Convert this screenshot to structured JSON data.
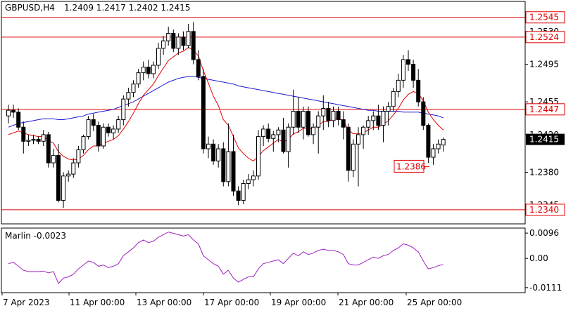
{
  "header": {
    "symbol_label": "GBPUSD,H4",
    "ohlc": "1.2409 1.2417 1.2402 1.2415"
  },
  "indicator": {
    "label": "Marlin -0.0023",
    "ticks": [
      {
        "v": 0.0096,
        "label": "0.0096"
      },
      {
        "v": 0.0,
        "label": "0.00"
      },
      {
        "v": -0.0111,
        "label": "-0.0111"
      }
    ]
  },
  "price_axis": {
    "ticks": [
      {
        "v": 1.253,
        "label": "1.2530"
      },
      {
        "v": 1.2495,
        "label": "1.2495"
      },
      {
        "v": 1.2455,
        "label": "1.2455"
      },
      {
        "v": 1.242,
        "label": "1.2420"
      },
      {
        "v": 1.238,
        "label": "1.2380"
      },
      {
        "v": 1.2345,
        "label": "1.2345"
      }
    ],
    "current_price": {
      "v": 1.2415,
      "label": "1.2415"
    }
  },
  "levels": [
    {
      "v": 1.2545,
      "label": "1.2545",
      "color": "#e00000"
    },
    {
      "v": 1.2524,
      "label": "1.2524",
      "color": "#e00000"
    },
    {
      "v": 1.2447,
      "label": "1.2447",
      "color": "#e00000"
    },
    {
      "v": 1.234,
      "label": "1.2340",
      "color": "#e00000"
    }
  ],
  "annotation": {
    "v": 1.2386,
    "label": "1.2386",
    "color": "#e00000"
  },
  "time_axis": [
    "7 Apr 2023",
    "11 Apr 00:00",
    "13 Apr 00:00",
    "17 Apr 00:00",
    "19 Apr 00:00",
    "21 Apr 00:00",
    "25 Apr 00:00"
  ],
  "colors": {
    "bull": "#ffffff",
    "bear": "#000000",
    "ma_fast": "#e00000",
    "ma_slow": "#1a1ad0",
    "oscillator": "#a020c0",
    "level": "#e00000"
  },
  "chart_data": {
    "type": "candlestick",
    "series": [
      {
        "name": "GBPUSD,H4",
        "ohlc": [
          [
            1.244,
            1.2452,
            1.2432,
            1.2446
          ],
          [
            1.2446,
            1.2452,
            1.2438,
            1.2444
          ],
          [
            1.2444,
            1.2448,
            1.2425,
            1.2428
          ],
          [
            1.2428,
            1.2434,
            1.24,
            1.2413
          ],
          [
            1.2413,
            1.242,
            1.2408,
            1.2414
          ],
          [
            1.2414,
            1.242,
            1.241,
            1.2415
          ],
          [
            1.2415,
            1.2418,
            1.241,
            1.2413
          ],
          [
            1.2413,
            1.2425,
            1.2408,
            1.242
          ],
          [
            1.242,
            1.2423,
            1.2385,
            1.239
          ],
          [
            1.239,
            1.2405,
            1.2385,
            1.2398
          ],
          [
            1.2398,
            1.241,
            1.2348,
            1.235
          ],
          [
            1.235,
            1.238,
            1.2342,
            1.2376
          ],
          [
            1.2376,
            1.2382,
            1.237,
            1.2378
          ],
          [
            1.2378,
            1.2395,
            1.2374,
            1.239
          ],
          [
            1.239,
            1.2408,
            1.2385,
            1.2404
          ],
          [
            1.2404,
            1.242,
            1.24,
            1.2418
          ],
          [
            1.2418,
            1.244,
            1.2415,
            1.2436
          ],
          [
            1.2436,
            1.2442,
            1.2424,
            1.243
          ],
          [
            1.243,
            1.2434,
            1.2402,
            1.2408
          ],
          [
            1.2408,
            1.2432,
            1.2405,
            1.2428
          ],
          [
            1.2428,
            1.2432,
            1.2418,
            1.2422
          ],
          [
            1.2422,
            1.243,
            1.2415,
            1.2426
          ],
          [
            1.2426,
            1.244,
            1.2422,
            1.2436
          ],
          [
            1.2436,
            1.2462,
            1.243,
            1.2458
          ],
          [
            1.2458,
            1.247,
            1.245,
            1.2465
          ],
          [
            1.2465,
            1.2478,
            1.246,
            1.2474
          ],
          [
            1.2474,
            1.249,
            1.247,
            1.2486
          ],
          [
            1.2486,
            1.2498,
            1.2478,
            1.2492
          ],
          [
            1.2492,
            1.25,
            1.248,
            1.2485
          ],
          [
            1.2485,
            1.2498,
            1.248,
            1.2494
          ],
          [
            1.2494,
            1.2518,
            1.249,
            1.2512
          ],
          [
            1.2512,
            1.2525,
            1.2505,
            1.252
          ],
          [
            1.252,
            1.2535,
            1.2515,
            1.2528
          ],
          [
            1.2528,
            1.2532,
            1.2508,
            1.2512
          ],
          [
            1.2512,
            1.2528,
            1.2505,
            1.2524
          ],
          [
            1.2524,
            1.253,
            1.251,
            1.2515
          ],
          [
            1.2515,
            1.2538,
            1.2512,
            1.253
          ],
          [
            1.253,
            1.254,
            1.2495,
            1.25
          ],
          [
            1.25,
            1.251,
            1.2478,
            1.2482
          ],
          [
            1.2482,
            1.249,
            1.24,
            1.2405
          ],
          [
            1.2405,
            1.2418,
            1.2395,
            1.241
          ],
          [
            1.241,
            1.2415,
            1.2388,
            1.2392
          ],
          [
            1.2392,
            1.241,
            1.2385,
            1.2405
          ],
          [
            1.2405,
            1.2412,
            1.2365,
            1.237
          ],
          [
            1.237,
            1.2432,
            1.2365,
            1.2402
          ],
          [
            1.2402,
            1.242,
            1.2355,
            1.236
          ],
          [
            1.236,
            1.2365,
            1.2345,
            1.235
          ],
          [
            1.235,
            1.2372,
            1.2346,
            1.2368
          ],
          [
            1.2368,
            1.2378,
            1.2362,
            1.2372
          ],
          [
            1.2372,
            1.2382,
            1.2365,
            1.2376
          ],
          [
            1.2376,
            1.2425,
            1.2372,
            1.2418
          ],
          [
            1.2418,
            1.243,
            1.2408,
            1.2426
          ],
          [
            1.2426,
            1.2432,
            1.2412,
            1.2416
          ],
          [
            1.2416,
            1.2424,
            1.2402,
            1.242
          ],
          [
            1.242,
            1.2428,
            1.2412,
            1.2425
          ],
          [
            1.2425,
            1.2438,
            1.24,
            1.2402
          ],
          [
            1.2402,
            1.2432,
            1.2385,
            1.2428
          ],
          [
            1.2428,
            1.2468,
            1.242,
            1.2445
          ],
          [
            1.2445,
            1.246,
            1.2422,
            1.2428
          ],
          [
            1.2428,
            1.245,
            1.2415,
            1.2445
          ],
          [
            1.2445,
            1.245,
            1.2418,
            1.242
          ],
          [
            1.242,
            1.2432,
            1.241,
            1.2428
          ],
          [
            1.2428,
            1.2445,
            1.24,
            1.244
          ],
          [
            1.244,
            1.2462,
            1.2425,
            1.2448
          ],
          [
            1.2448,
            1.2455,
            1.2428,
            1.2435
          ],
          [
            1.2435,
            1.245,
            1.2428,
            1.2445
          ],
          [
            1.2445,
            1.245,
            1.243,
            1.2436
          ],
          [
            1.2436,
            1.2445,
            1.2415,
            1.2428
          ],
          [
            1.2428,
            1.2432,
            1.237,
            1.2382
          ],
          [
            1.2382,
            1.2415,
            1.2375,
            1.241
          ],
          [
            1.241,
            1.2428,
            1.2365,
            1.242
          ],
          [
            1.242,
            1.243,
            1.2405,
            1.2428
          ],
          [
            1.2428,
            1.244,
            1.242,
            1.2435
          ],
          [
            1.2435,
            1.2445,
            1.2425,
            1.244
          ],
          [
            1.244,
            1.2452,
            1.2425,
            1.243
          ],
          [
            1.243,
            1.245,
            1.2412,
            1.2445
          ],
          [
            1.2445,
            1.2455,
            1.243,
            1.245
          ],
          [
            1.245,
            1.247,
            1.2445,
            1.2466
          ],
          [
            1.2466,
            1.2485,
            1.246,
            1.2478
          ],
          [
            1.2478,
            1.2505,
            1.247,
            1.25
          ],
          [
            1.25,
            1.251,
            1.2488,
            1.2495
          ],
          [
            1.2495,
            1.25,
            1.247,
            1.2478
          ],
          [
            1.2478,
            1.249,
            1.245,
            1.2455
          ],
          [
            1.2455,
            1.246,
            1.2425,
            1.243
          ],
          [
            1.243,
            1.2432,
            1.239,
            1.2396
          ],
          [
            1.2396,
            1.241,
            1.2388,
            1.2405
          ],
          [
            1.2405,
            1.2415,
            1.24,
            1.241
          ],
          [
            1.2409,
            1.2417,
            1.2402,
            1.2415
          ]
        ]
      }
    ],
    "ma_fast": [
      1.242,
      1.2422,
      1.2424,
      1.2422,
      1.242,
      1.2419,
      1.2418,
      1.2418,
      1.2414,
      1.2411,
      1.2402,
      1.2397,
      1.2394,
      1.2393,
      1.2394,
      1.2398,
      1.2404,
      1.2408,
      1.2408,
      1.2411,
      1.2413,
      1.2415,
      1.2419,
      1.2426,
      1.2434,
      1.2443,
      1.2453,
      1.2462,
      1.2468,
      1.2474,
      1.2483,
      1.2491,
      1.2499,
      1.2503,
      1.2507,
      1.2509,
      1.2513,
      1.251,
      1.2504,
      1.2488,
      1.2475,
      1.2461,
      1.2451,
      1.2436,
      1.243,
      1.2418,
      1.2406,
      1.24,
      1.2395,
      1.2392,
      1.2397,
      1.2403,
      1.2407,
      1.2411,
      1.2415,
      1.2412,
      1.2415,
      1.2421,
      1.2423,
      1.2427,
      1.2426,
      1.2427,
      1.243,
      1.2434,
      1.2434,
      1.2437,
      1.2437,
      1.2435,
      1.2425,
      1.2421,
      1.2421,
      1.2422,
      1.2425,
      1.2428,
      1.2428,
      1.2431,
      1.2435,
      1.2441,
      1.2448,
      1.2457,
      1.2463,
      1.2466,
      1.2464,
      1.2456,
      1.2444,
      1.2436,
      1.243,
      1.2425
    ],
    "ma_slow": [
      1.2428,
      1.243,
      1.2432,
      1.2433,
      1.2434,
      1.2435,
      1.2436,
      1.2437,
      1.2437,
      1.2437,
      1.2436,
      1.2436,
      1.2437,
      1.2438,
      1.2439,
      1.244,
      1.2442,
      1.2443,
      1.2444,
      1.2445,
      1.2446,
      1.2447,
      1.2449,
      1.2451,
      1.2453,
      1.2455,
      1.2458,
      1.2461,
      1.2464,
      1.2467,
      1.247,
      1.2473,
      1.2476,
      1.2478,
      1.248,
      1.2481,
      1.2482,
      1.2482,
      1.2481,
      1.248,
      1.2479,
      1.2478,
      1.2477,
      1.2476,
      1.2475,
      1.2474,
      1.2472,
      1.2471,
      1.247,
      1.2469,
      1.2468,
      1.2467,
      1.2466,
      1.2465,
      1.2464,
      1.2463,
      1.2462,
      1.2461,
      1.246,
      1.2459,
      1.2458,
      1.2457,
      1.2456,
      1.2455,
      1.2454,
      1.2453,
      1.2452,
      1.2451,
      1.245,
      1.2449,
      1.2448,
      1.2447,
      1.2446,
      1.2446,
      1.2445,
      1.2445,
      1.2445,
      1.2445,
      1.2445,
      1.2444,
      1.2444,
      1.2444,
      1.2444,
      1.2443,
      1.2442,
      1.2441,
      1.244,
      1.2438
    ],
    "oscillator": [
      -0.002,
      -0.0015,
      -0.003,
      -0.0045,
      -0.005,
      -0.005,
      -0.005,
      -0.0048,
      -0.0055,
      -0.005,
      -0.0095,
      -0.0075,
      -0.007,
      -0.006,
      -0.004,
      -0.0025,
      -0.001,
      -0.0015,
      -0.003,
      -0.0025,
      -0.0035,
      -0.003,
      -0.002,
      0.001,
      0.0025,
      0.004,
      0.006,
      0.007,
      0.006,
      0.0065,
      0.008,
      0.009,
      0.01,
      0.0095,
      0.009,
      0.0085,
      0.009,
      0.007,
      0.0055,
      0.001,
      -0.0005,
      -0.002,
      -0.003,
      -0.006,
      -0.0045,
      -0.0075,
      -0.009,
      -0.008,
      -0.007,
      -0.007,
      -0.004,
      -0.002,
      -0.0015,
      -0.001,
      -0.0005,
      -0.002,
      0.0,
      0.002,
      0.001,
      0.0025,
      0.0015,
      0.002,
      0.003,
      0.0035,
      0.003,
      0.003,
      0.0025,
      0.0015,
      -0.002,
      -0.0025,
      -0.0025,
      -0.0015,
      -0.0005,
      0.0005,
      0.0,
      0.001,
      0.0015,
      0.003,
      0.004,
      0.0055,
      0.005,
      0.004,
      0.0025,
      -0.001,
      -0.004,
      -0.0035,
      -0.0028,
      -0.0023
    ],
    "ylim": [
      1.2325,
      1.2562
    ],
    "osc_ylim": [
      -0.013,
      0.0115
    ],
    "grid": false,
    "legend": "none"
  }
}
